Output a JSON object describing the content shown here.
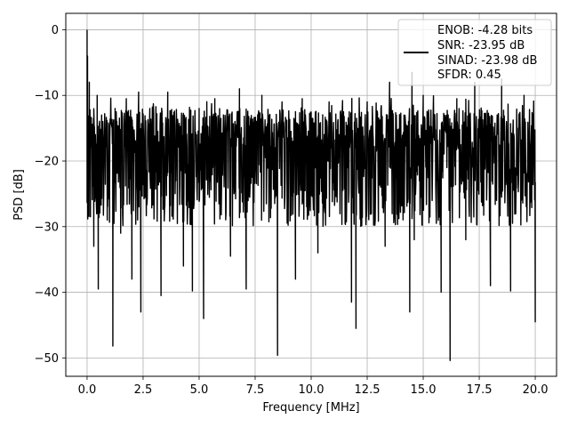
{
  "chart_data": {
    "type": "line",
    "title": "",
    "xlabel": "Frequency [MHz]",
    "ylabel": "PSD [dB]",
    "xlim": [
      -0.95,
      20.95
    ],
    "ylim": [
      -52.8,
      2.5
    ],
    "x_ticks": [
      0.0,
      2.5,
      5.0,
      7.5,
      10.0,
      12.5,
      15.0,
      17.5,
      20.0
    ],
    "x_tick_labels": [
      "0.0",
      "2.5",
      "5.0",
      "7.5",
      "10.0",
      "12.5",
      "15.0",
      "17.5",
      "20.0"
    ],
    "y_ticks": [
      0,
      -10,
      -20,
      -30,
      -40,
      -50
    ],
    "y_tick_labels": [
      "0",
      "−10",
      "−20",
      "−30",
      "−40",
      "−50"
    ],
    "grid": true,
    "legend_position": "top-right",
    "series_color": "#000000",
    "series": [
      {
        "name": "",
        "x_start": 0.0,
        "x_end": 20.0,
        "noise_band_dB": [
          -30,
          -10
        ],
        "values_sampled": [
          [
            0.0,
            0.0
          ],
          [
            0.02,
            -4.0
          ],
          [
            0.05,
            -28.0
          ],
          [
            0.1,
            -8.0
          ],
          [
            0.15,
            -28.5
          ],
          [
            0.25,
            -16.0
          ],
          [
            0.3,
            -33.0
          ],
          [
            0.45,
            -10.0
          ],
          [
            0.5,
            -39.5
          ],
          [
            0.65,
            -13.0
          ],
          [
            0.9,
            -29.0
          ],
          [
            1.15,
            -48.2
          ],
          [
            1.25,
            -12.0
          ],
          [
            1.5,
            -31.0
          ],
          [
            1.75,
            -10.5
          ],
          [
            2.0,
            -38.0
          ],
          [
            2.3,
            -9.5
          ],
          [
            2.4,
            -43.0
          ],
          [
            2.8,
            -12.0
          ],
          [
            3.3,
            -40.5
          ],
          [
            3.6,
            -9.5
          ],
          [
            4.3,
            -36.0
          ],
          [
            4.7,
            -39.8
          ],
          [
            5.0,
            -12.0
          ],
          [
            5.2,
            -44.0
          ],
          [
            5.7,
            -10.5
          ],
          [
            6.4,
            -34.5
          ],
          [
            6.8,
            -9.0
          ],
          [
            7.1,
            -39.5
          ],
          [
            7.8,
            -10.0
          ],
          [
            8.5,
            -49.6
          ],
          [
            8.7,
            -11.0
          ],
          [
            9.3,
            -38.0
          ],
          [
            9.6,
            -10.5
          ],
          [
            10.3,
            -34.0
          ],
          [
            10.8,
            -11.0
          ],
          [
            11.8,
            -41.5
          ],
          [
            12.0,
            -45.5
          ],
          [
            12.5,
            -11.0
          ],
          [
            13.3,
            -33.0
          ],
          [
            13.5,
            -8.0
          ],
          [
            14.4,
            -43.0
          ],
          [
            14.5,
            -6.5
          ],
          [
            14.6,
            -32.0
          ],
          [
            15.0,
            -10.0
          ],
          [
            15.8,
            -40.0
          ],
          [
            16.2,
            -50.4
          ],
          [
            16.5,
            -10.5
          ],
          [
            16.9,
            -32.0
          ],
          [
            17.3,
            -8.0
          ],
          [
            18.0,
            -39.0
          ],
          [
            18.5,
            -7.5
          ],
          [
            18.9,
            -39.8
          ],
          [
            19.5,
            -10.0
          ],
          [
            20.0,
            -44.5
          ]
        ]
      }
    ]
  },
  "legend": {
    "line1": "ENOB: -4.28 bits",
    "line2": "SNR: -23.95 dB",
    "line3": "SINAD: -23.98 dB",
    "line4": "SFDR: 0.45"
  }
}
